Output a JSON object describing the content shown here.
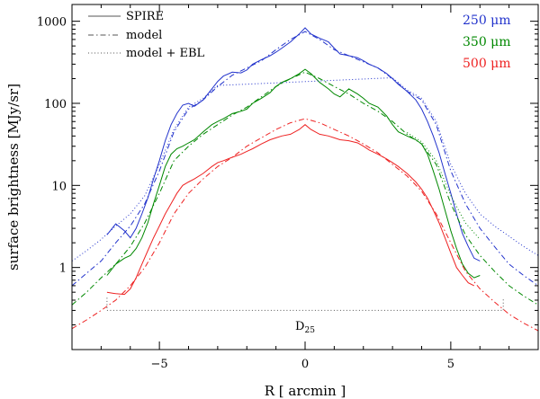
{
  "chart_data": {
    "type": "line",
    "xlabel": "R [ arcmin ]",
    "ylabel": "surface brightness [MJy/sr]",
    "xlim": [
      -8.0,
      8.0
    ],
    "ylim": [
      0.1,
      1600
    ],
    "yscale": "log",
    "xticks": [
      -5,
      0,
      5
    ],
    "xtick_labels": [
      "−5",
      "0",
      "5"
    ],
    "yticks": [
      1,
      10,
      100,
      1000
    ],
    "ytick_labels": [
      "1",
      "10",
      "100",
      "1000"
    ],
    "legend": [
      {
        "label": "SPIRE",
        "style": "solid"
      },
      {
        "label": "model",
        "style": "dashdot"
      },
      {
        "label": "model + EBL",
        "style": "dotted"
      }
    ],
    "band_labels": [
      {
        "label": "250 μm",
        "color": "#2233cc"
      },
      {
        "label": "350 μm",
        "color": "#008800"
      },
      {
        "label": "500 μm",
        "color": "#ee2222"
      }
    ],
    "annotation": {
      "label": "D",
      "subscript": "25",
      "range": [
        -6.8,
        6.8
      ],
      "y": 0.3
    },
    "series": [
      {
        "name": "SPIRE 250 μm",
        "band": "250",
        "style": "solid",
        "color": "#2233cc",
        "x": [
          -6.8,
          -6.5,
          -6.2,
          -6.0,
          -5.8,
          -5.6,
          -5.4,
          -5.2,
          -5.0,
          -4.8,
          -4.6,
          -4.4,
          -4.2,
          -4.0,
          -3.8,
          -3.5,
          -3.2,
          -3.0,
          -2.8,
          -2.5,
          -2.2,
          -2.0,
          -1.8,
          -1.5,
          -1.2,
          -1.0,
          -0.8,
          -0.5,
          -0.2,
          0.0,
          0.2,
          0.5,
          0.8,
          1.0,
          1.2,
          1.5,
          1.8,
          2.0,
          2.2,
          2.5,
          2.8,
          3.0,
          3.2,
          3.5,
          3.8,
          4.0,
          4.2,
          4.4,
          4.6,
          4.8,
          5.0,
          5.2,
          5.4,
          5.6,
          5.8,
          6.0
        ],
        "y": [
          2.5,
          3.4,
          2.8,
          2.3,
          3.0,
          4.5,
          7.0,
          12.0,
          20.0,
          35.0,
          55.0,
          75.0,
          95.0,
          100.0,
          92.0,
          110.0,
          150.0,
          185.0,
          215.0,
          240.0,
          235.0,
          255.0,
          300.0,
          340.0,
          380.0,
          420.0,
          470.0,
          560.0,
          700.0,
          830.0,
          700.0,
          620.0,
          560.0,
          470.0,
          400.0,
          380.0,
          360.0,
          330.0,
          300.0,
          270.0,
          230.0,
          200.0,
          170.0,
          140.0,
          110.0,
          85.0,
          60.0,
          40.0,
          25.0,
          14.0,
          8.0,
          4.5,
          2.6,
          1.8,
          1.3,
          1.2
        ]
      },
      {
        "name": "SPIRE 350 μm",
        "band": "350",
        "style": "solid",
        "color": "#008800",
        "x": [
          -6.8,
          -6.5,
          -6.2,
          -6.0,
          -5.8,
          -5.6,
          -5.4,
          -5.2,
          -5.0,
          -4.8,
          -4.6,
          -4.4,
          -4.2,
          -4.0,
          -3.8,
          -3.5,
          -3.2,
          -3.0,
          -2.8,
          -2.5,
          -2.2,
          -2.0,
          -1.8,
          -1.5,
          -1.2,
          -1.0,
          -0.8,
          -0.5,
          -0.2,
          0.0,
          0.2,
          0.5,
          0.8,
          1.0,
          1.2,
          1.5,
          1.8,
          2.0,
          2.2,
          2.5,
          2.8,
          3.0,
          3.2,
          3.5,
          3.8,
          4.0,
          4.2,
          4.4,
          4.6,
          4.8,
          5.0,
          5.2,
          5.4,
          5.6,
          5.8,
          6.0
        ],
        "y": [
          0.8,
          1.1,
          1.3,
          1.4,
          1.7,
          2.3,
          3.5,
          6.0,
          10.0,
          17.0,
          24.0,
          28.0,
          30.0,
          33.0,
          36.0,
          45.0,
          55.0,
          60.0,
          65.0,
          75.0,
          80.0,
          85.0,
          100.0,
          115.0,
          135.0,
          160.0,
          180.0,
          200.0,
          230.0,
          260.0,
          230.0,
          180.0,
          150.0,
          130.0,
          120.0,
          150.0,
          130.0,
          115.0,
          100.0,
          90.0,
          70.0,
          55.0,
          45.0,
          40.0,
          36.0,
          32.0,
          24.0,
          15.0,
          9.0,
          5.0,
          2.8,
          1.7,
          1.1,
          0.85,
          0.75,
          0.8
        ]
      },
      {
        "name": "SPIRE 500 μm",
        "band": "500",
        "style": "solid",
        "color": "#ee2222",
        "x": [
          -6.8,
          -6.5,
          -6.2,
          -6.0,
          -5.8,
          -5.6,
          -5.4,
          -5.2,
          -5.0,
          -4.8,
          -4.6,
          -4.4,
          -4.2,
          -4.0,
          -3.8,
          -3.5,
          -3.2,
          -3.0,
          -2.8,
          -2.5,
          -2.2,
          -2.0,
          -1.8,
          -1.5,
          -1.2,
          -1.0,
          -0.8,
          -0.5,
          -0.2,
          0.0,
          0.2,
          0.5,
          0.8,
          1.0,
          1.2,
          1.5,
          1.8,
          2.0,
          2.2,
          2.5,
          2.8,
          3.0,
          3.2,
          3.5,
          3.8,
          4.0,
          4.2,
          4.4,
          4.6,
          4.8,
          5.0,
          5.2,
          5.4,
          5.6,
          5.8
        ],
        "y": [
          0.5,
          0.48,
          0.47,
          0.55,
          0.75,
          1.1,
          1.6,
          2.3,
          3.2,
          4.5,
          6.0,
          8.0,
          10.0,
          11.0,
          12.0,
          14.0,
          17.0,
          19.0,
          20.0,
          22.0,
          24.0,
          26.0,
          28.0,
          32.0,
          36.0,
          38.0,
          40.0,
          42.0,
          48.0,
          55.0,
          48.0,
          42.0,
          40.0,
          38.0,
          36.0,
          35.0,
          33.0,
          30.0,
          27.0,
          24.0,
          21.0,
          19.0,
          17.0,
          14.0,
          11.0,
          9.0,
          7.0,
          5.0,
          3.5,
          2.3,
          1.5,
          1.0,
          0.8,
          0.65,
          0.6
        ]
      },
      {
        "name": "model 250 μm",
        "band": "250",
        "style": "dashdot",
        "color": "#2233cc",
        "x": [
          -8.0,
          -7.5,
          -7.0,
          -6.5,
          -6.0,
          -5.5,
          -5.0,
          -4.5,
          -4.0,
          -3.5,
          -3.0,
          -2.5,
          -2.0,
          -1.5,
          -1.0,
          -0.5,
          0.0,
          0.5,
          1.0,
          1.5,
          2.0,
          2.5,
          3.0,
          3.5,
          4.0,
          4.5,
          5.0,
          5.5,
          6.0,
          6.5,
          7.0,
          7.5,
          8.0
        ],
        "y": [
          0.6,
          0.85,
          1.2,
          2.0,
          3.2,
          6.0,
          15.0,
          45.0,
          85.0,
          110.0,
          160.0,
          220.0,
          270.0,
          330.0,
          450.0,
          600.0,
          750.0,
          600.0,
          450.0,
          380.0,
          320.0,
          270.0,
          200.0,
          140.0,
          110.0,
          55.0,
          15.0,
          6.0,
          3.0,
          1.8,
          1.1,
          0.8,
          0.6
        ]
      },
      {
        "name": "model 350 μm",
        "band": "350",
        "style": "dashdot",
        "color": "#008800",
        "x": [
          -8.0,
          -7.5,
          -7.0,
          -6.5,
          -6.0,
          -5.5,
          -5.0,
          -4.5,
          -4.0,
          -3.5,
          -3.0,
          -2.5,
          -2.0,
          -1.5,
          -1.0,
          -0.5,
          0.0,
          0.5,
          1.0,
          1.5,
          2.0,
          2.5,
          3.0,
          3.5,
          4.0,
          4.5,
          5.0,
          5.5,
          6.0,
          6.5,
          7.0,
          7.5,
          8.0
        ],
        "y": [
          0.35,
          0.5,
          0.75,
          1.1,
          1.8,
          3.5,
          8.0,
          20.0,
          30.0,
          42.0,
          55.0,
          72.0,
          90.0,
          120.0,
          160.0,
          200.0,
          240.0,
          200.0,
          160.0,
          130.0,
          100.0,
          80.0,
          60.0,
          42.0,
          32.0,
          18.0,
          6.0,
          2.5,
          1.4,
          0.9,
          0.6,
          0.45,
          0.35
        ]
      },
      {
        "name": "model 500 μm",
        "band": "500",
        "style": "dashdot",
        "color": "#ee2222",
        "x": [
          -8.0,
          -7.5,
          -7.0,
          -6.5,
          -6.0,
          -5.5,
          -5.0,
          -4.5,
          -4.0,
          -3.5,
          -3.0,
          -2.5,
          -2.0,
          -1.5,
          -1.0,
          -0.5,
          0.0,
          0.5,
          1.0,
          1.5,
          2.0,
          2.5,
          3.0,
          3.5,
          4.0,
          4.5,
          5.0,
          5.5,
          6.0,
          6.5,
          7.0,
          7.5,
          8.0
        ],
        "y": [
          0.18,
          0.23,
          0.3,
          0.4,
          0.6,
          1.0,
          2.0,
          4.5,
          8.0,
          12.0,
          17.0,
          22.0,
          30.0,
          38.0,
          48.0,
          58.0,
          65.0,
          58.0,
          48.0,
          40.0,
          32.0,
          25.0,
          18.0,
          13.0,
          8.5,
          4.5,
          2.0,
          0.9,
          0.55,
          0.38,
          0.27,
          0.21,
          0.17
        ]
      },
      {
        "name": "model + EBL 250 μm",
        "band": "250",
        "style": "dotted",
        "color": "#2233cc",
        "x": [
          -8.0,
          -7.5,
          -7.0,
          -6.5,
          -6.0,
          -5.5,
          -5.0,
          -4.5,
          -4.0,
          -3.5,
          -3.0,
          3.0,
          3.5,
          4.0,
          4.5,
          5.0,
          5.5,
          6.0,
          6.5,
          7.0,
          7.5,
          8.0
        ],
        "y": [
          1.2,
          1.6,
          2.2,
          3.2,
          4.5,
          7.5,
          18.0,
          48.0,
          90.0,
          115.0,
          165.0,
          205.0,
          145.0,
          115.0,
          60.0,
          18.0,
          8.0,
          4.5,
          3.2,
          2.4,
          1.8,
          1.4
        ]
      },
      {
        "name": "model + EBL 350 μm",
        "band": "350",
        "style": "dotted",
        "color": "#008800",
        "x": [
          3.5,
          4.0,
          4.5,
          5.0,
          5.5,
          6.0
        ],
        "y": [
          44.0,
          34.0,
          20.0,
          7.5,
          3.5,
          2.2
        ]
      }
    ]
  }
}
